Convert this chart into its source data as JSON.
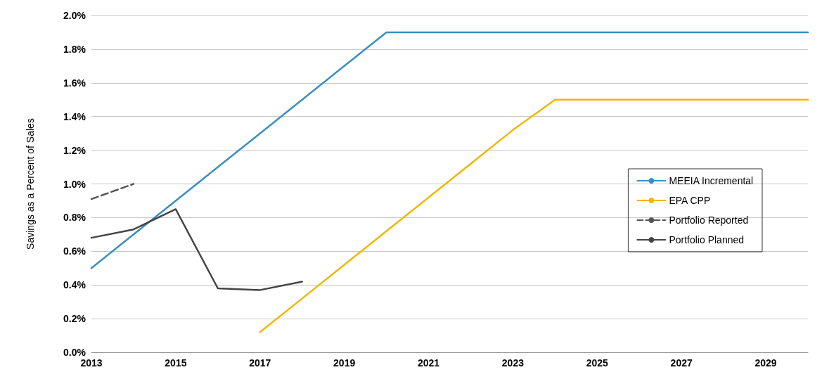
{
  "chart_data": {
    "type": "line",
    "ylabel": "Savings as a Percent of Sales",
    "categories": [
      "2013",
      null,
      "2015",
      null,
      "2017",
      null,
      "2019",
      null,
      "2021",
      null,
      "2023",
      null,
      "2025",
      null,
      "2027",
      null,
      "2029",
      null
    ],
    "series": [
      {
        "name": "MEEIA Incremental",
        "color": "#3a8fbf",
        "line_style": "solid",
        "values": [
          0.5,
          0.7,
          0.9,
          1.1,
          1.3,
          1.5,
          1.7,
          1.9,
          1.9,
          1.9,
          1.9,
          1.9,
          1.9,
          1.9,
          1.9,
          1.9,
          1.9,
          1.9
        ]
      },
      {
        "name": "EPA CPP",
        "color": "#f2b705",
        "line_style": "solid",
        "values": [
          null,
          null,
          null,
          null,
          0.12,
          0.32,
          0.52,
          0.72,
          0.92,
          1.12,
          1.32,
          1.5,
          1.5,
          1.5,
          1.5,
          1.5,
          1.5,
          1.5
        ]
      },
      {
        "name": "Portfolio Reported",
        "color": "#555555",
        "line_style": "dashed",
        "values": [
          0.91,
          1.0,
          null,
          null,
          null,
          null,
          null,
          null,
          null,
          null,
          null,
          null,
          null,
          null,
          null,
          null,
          null,
          null
        ]
      },
      {
        "name": "Portfolio Planned",
        "color": "#444444",
        "line_style": "solid",
        "values": [
          0.68,
          0.73,
          0.85,
          0.38,
          0.37,
          0.42,
          null,
          null,
          null,
          null,
          null,
          null,
          null,
          null,
          null,
          null,
          null,
          null
        ]
      }
    ],
    "ylim": [
      0,
      2
    ],
    "yticks": [
      {
        "value": 0,
        "label": "0.0%"
      },
      {
        "value": 0.2,
        "label": "0.2%"
      },
      {
        "value": 0.4,
        "label": "0.4%"
      },
      {
        "value": 0.6,
        "label": "0.6%"
      },
      {
        "value": 0.8,
        "label": "0.8%"
      },
      {
        "value": 1,
        "label": "1.0%"
      },
      {
        "value": 1.2,
        "label": "1.2%"
      },
      {
        "value": 1.4,
        "label": "1.4%"
      },
      {
        "value": 1.6,
        "label": "1.6%"
      },
      {
        "value": 1.8,
        "label": "1.8%"
      },
      {
        "value": 2,
        "label": "2.0%"
      }
    ],
    "grid": "y",
    "legend": "right",
    "marker": "none"
  }
}
